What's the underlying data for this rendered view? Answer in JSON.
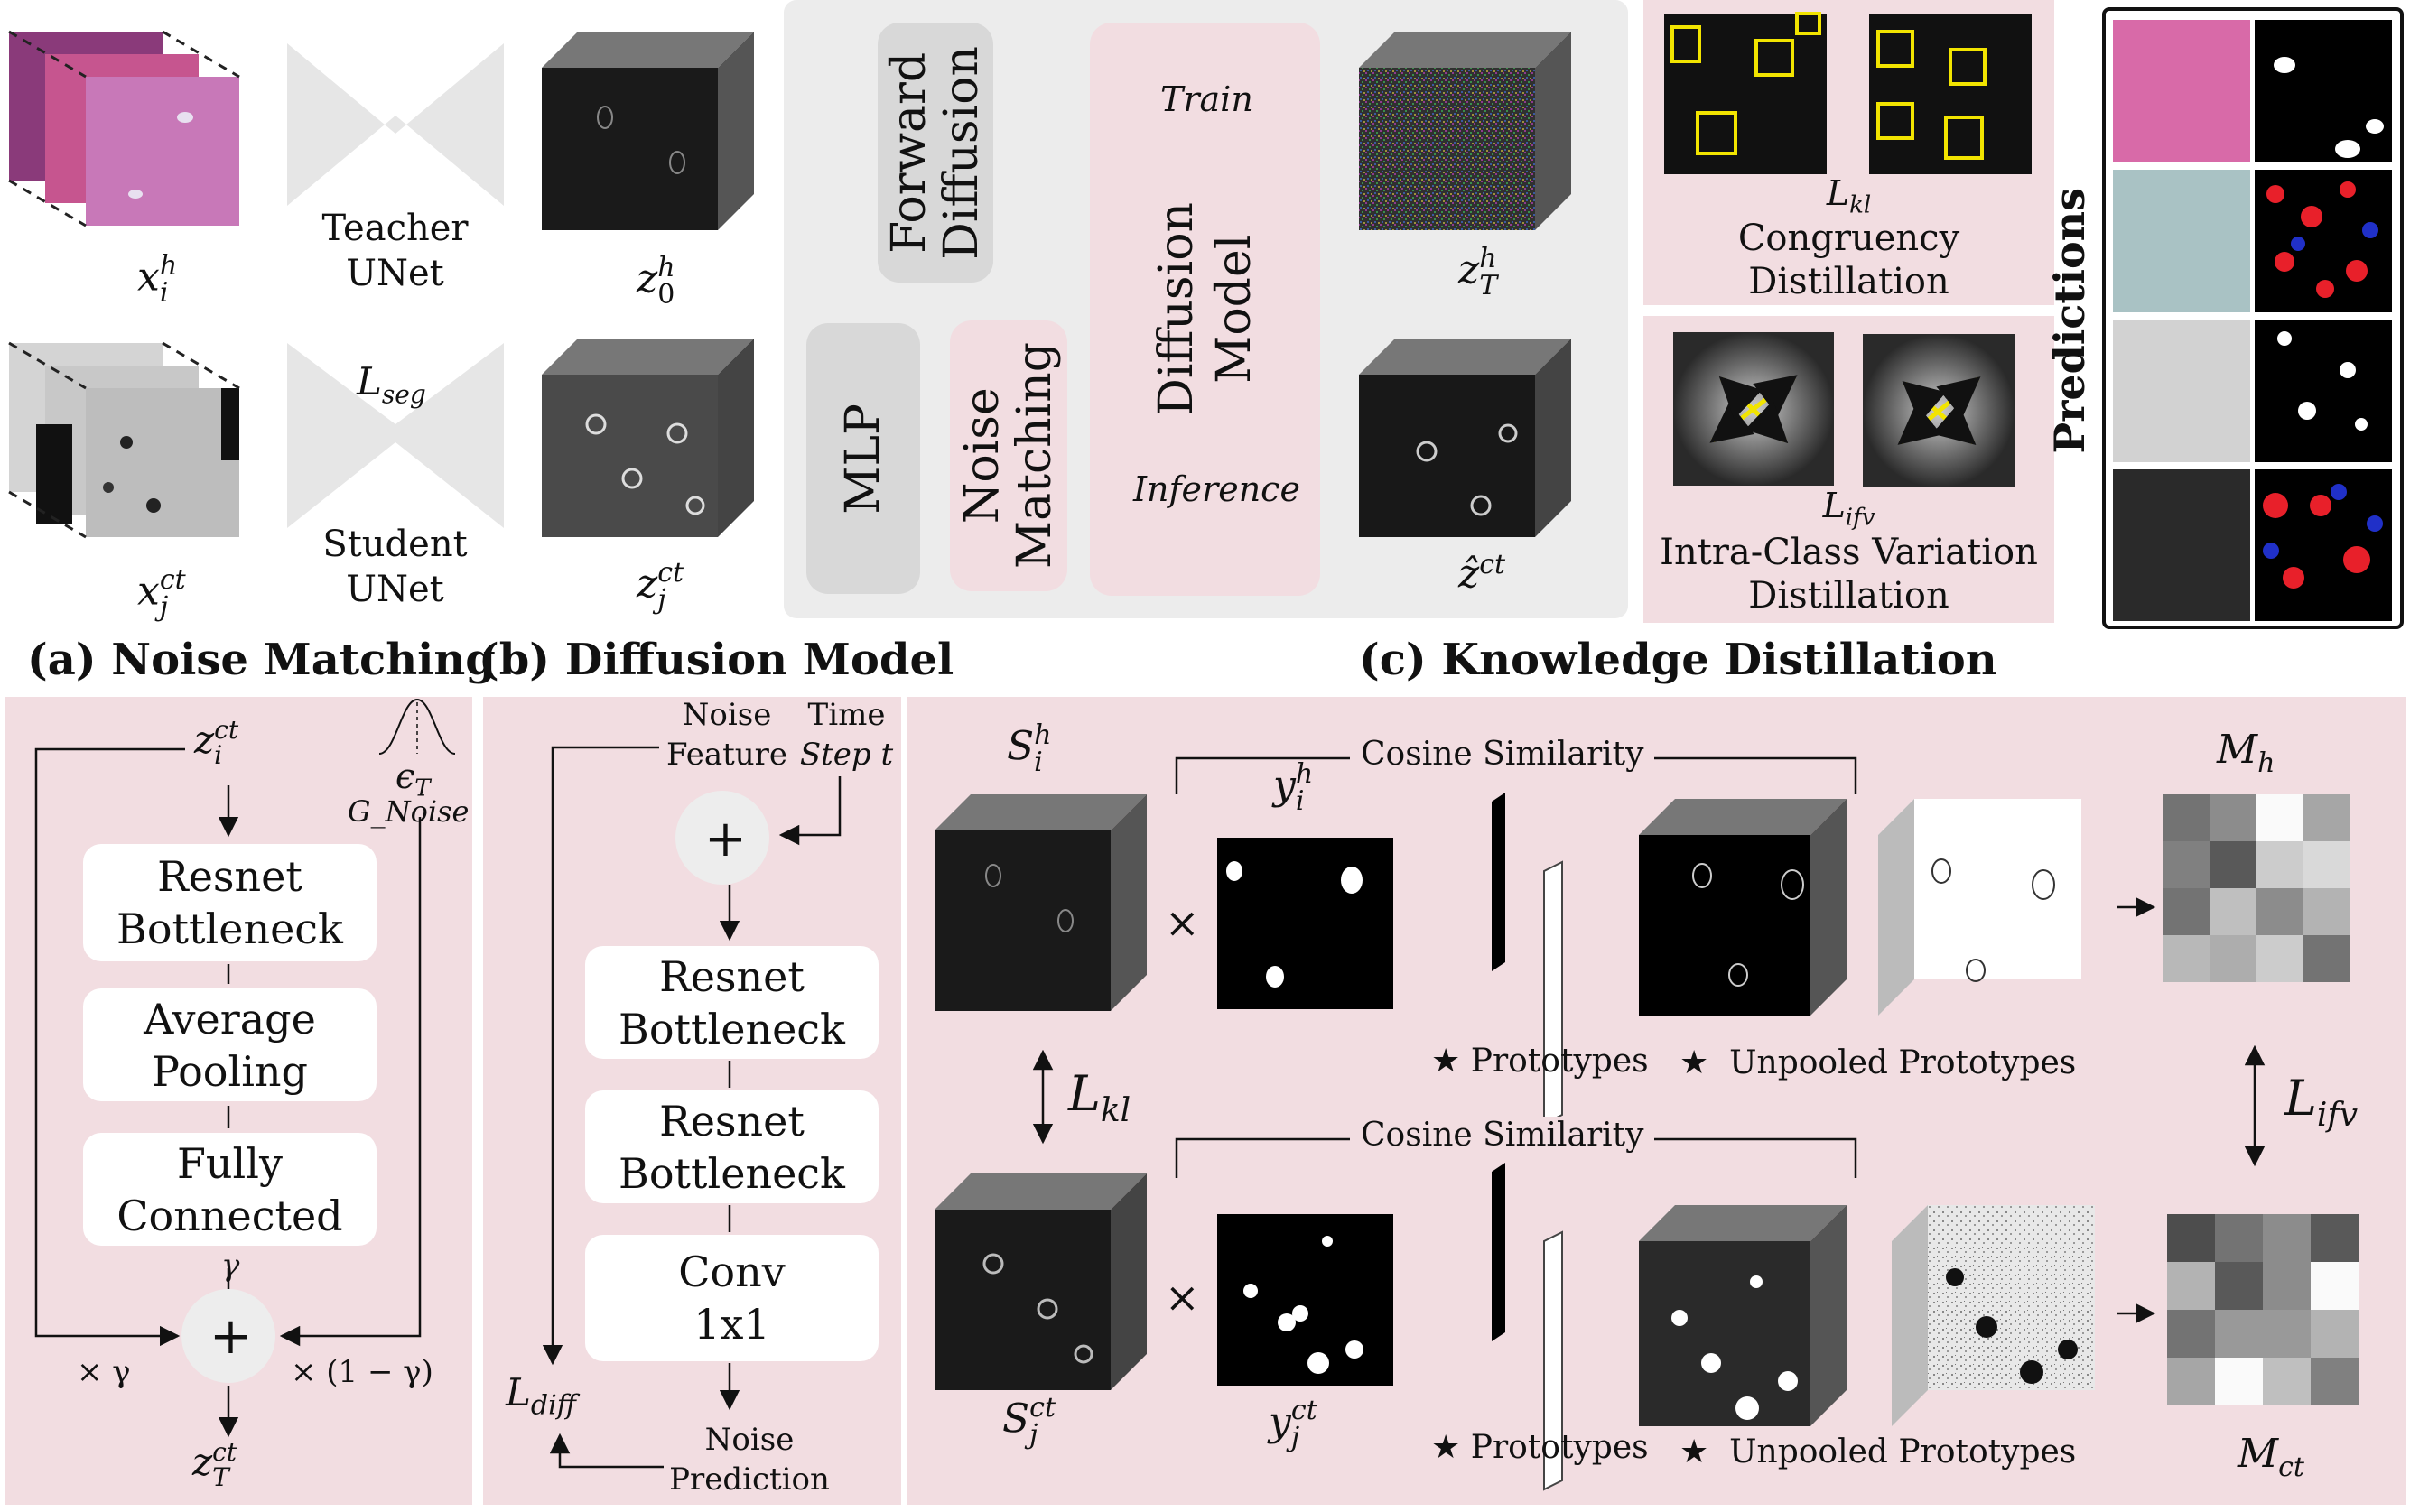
{
  "encoders": {
    "teacher_label": [
      "Teacher",
      "UNet"
    ],
    "student_label": [
      "Student",
      "UNet"
    ],
    "loss_seg": "L",
    "loss_seg_sub": "seg",
    "x_h": {
      "base": "x",
      "sup": "h",
      "sub": "i"
    },
    "x_ct": {
      "base": "x",
      "sup": "ct",
      "sub": "j"
    },
    "z0_h": {
      "base": "z",
      "sup": "h",
      "sub": "0"
    },
    "zj_ct": {
      "base": "z",
      "sup": "ct",
      "sub": "j"
    }
  },
  "diffusion_panel": {
    "forward_diffusion": [
      "Forward",
      "Diffusion"
    ],
    "mlp": "MLP",
    "noise_matching": [
      "Noise",
      "Matching"
    ],
    "diffusion_model": [
      "Diffusion",
      "Model"
    ],
    "train": "Train",
    "inference": "Inference",
    "zT_h": {
      "base": "z",
      "sup": "h",
      "sub": "T"
    },
    "zhat_ct": {
      "base": "ẑ",
      "sup": "ct",
      "sub": ""
    }
  },
  "distillation_top": {
    "loss": "L",
    "loss_sub": "kl",
    "caption": [
      "Congruency",
      "Distillation"
    ]
  },
  "distillation_bottom": {
    "loss": "L",
    "loss_sub": "ifv",
    "caption": [
      "Intra-Class Variation",
      "Distillation"
    ]
  },
  "predictions_label": "Predictions",
  "section_titles": {
    "a": "(a) Noise Matching",
    "b": "(b) Diffusion Model",
    "c": "(c) Knowledge Distillation"
  },
  "noise_matching": {
    "input": {
      "base": "z",
      "sup": "ct",
      "sub": "i"
    },
    "epsilon": "ϵ",
    "epsilon_sub": "T",
    "gnoise": "G_Noise",
    "blocks": [
      [
        "Resnet",
        "Bottleneck"
      ],
      [
        "Average",
        "Pooling"
      ],
      [
        "Fully",
        "Connected"
      ]
    ],
    "gamma": "γ",
    "plus": "+",
    "times_gamma": "× γ",
    "times_one_minus_gamma": "× (1 − γ)",
    "output": {
      "base": "z",
      "sup": "ct",
      "sub": "T"
    }
  },
  "diffusion_model": {
    "noise_feature": [
      "Noise",
      "Feature"
    ],
    "time_step": [
      "Time",
      "Step t"
    ],
    "plus": "+",
    "blocks": [
      [
        "Resnet",
        "Bottleneck"
      ],
      [
        "Resnet",
        "Bottleneck"
      ],
      [
        "Conv",
        "1x1"
      ]
    ],
    "noise_prediction": [
      "Noise",
      "Prediction"
    ],
    "loss": "L",
    "loss_sub": "diff"
  },
  "knowledge_distillation": {
    "S_h": {
      "base": "S",
      "sup": "h",
      "sub": "i"
    },
    "S_ct": {
      "base": "S",
      "sup": "ct",
      "sub": "j"
    },
    "y_h": {
      "base": "y",
      "sup": "h",
      "sub": "i"
    },
    "y_ct": {
      "base": "y",
      "sup": "ct",
      "sub": "j"
    },
    "times": "×",
    "cosine_similarity": "Cosine Similarity",
    "prototypes": "Prototypes",
    "unpooled_prototypes": "Unpooled Prototypes",
    "star": "★",
    "L_kl": "L",
    "L_kl_sub": "kl",
    "L_ifv": "L",
    "L_ifv_sub": "ifv",
    "M_h": {
      "base": "M",
      "sub": "h"
    },
    "M_ct": {
      "base": "M",
      "sub": "ct"
    },
    "M_h_grid": [
      [
        0.45,
        0.55,
        0.98,
        0.65
      ],
      [
        0.5,
        0.35,
        0.8,
        0.85
      ],
      [
        0.45,
        0.75,
        0.55,
        0.7
      ],
      [
        0.72,
        0.68,
        0.8,
        0.45
      ]
    ],
    "M_ct_grid": [
      [
        0.3,
        0.45,
        0.55,
        0.35
      ],
      [
        0.7,
        0.35,
        0.55,
        0.98
      ],
      [
        0.45,
        0.6,
        0.6,
        0.7
      ],
      [
        0.65,
        0.98,
        0.75,
        0.5
      ]
    ]
  },
  "colors": {
    "pink_panel": "#f2dde1",
    "gray_panel": "#ececec",
    "gray_box": "#d8d8d8",
    "yellow": "#f2e400",
    "red": "#e8202a",
    "blue": "#2030c8"
  }
}
